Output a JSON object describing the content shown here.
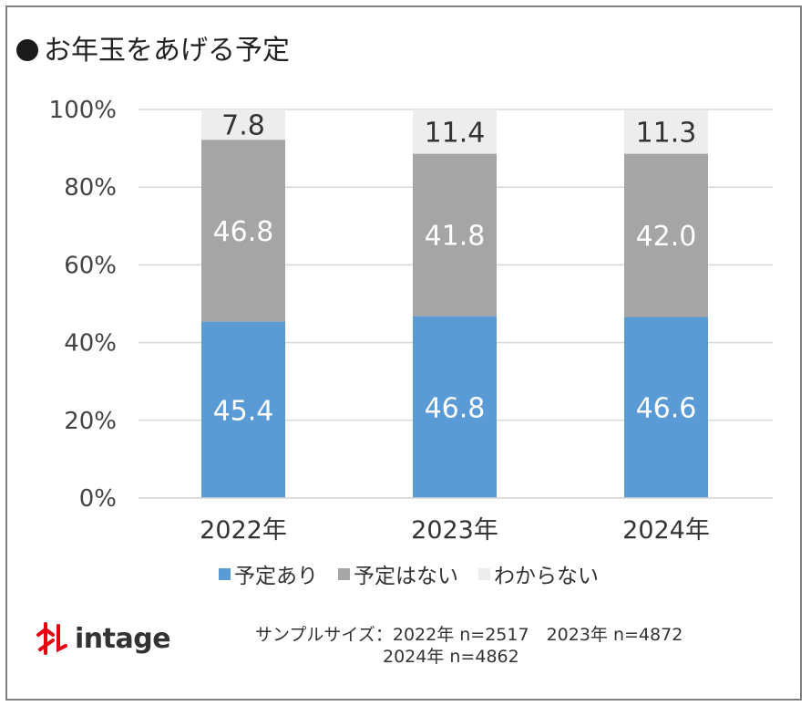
{
  "title": "お年玉をあげる予定",
  "chart_data": {
    "type": "bar",
    "stacked": true,
    "categories": [
      "2022年",
      "2023年",
      "2024年"
    ],
    "series": [
      {
        "name": "予定あり",
        "values": [
          45.4,
          46.8,
          46.6
        ],
        "color": "#5b9bd5",
        "label_color": "#ffffff"
      },
      {
        "name": "予定はない",
        "values": [
          46.8,
          41.8,
          42.0
        ],
        "color": "#a5a5a5",
        "label_color": "#ffffff"
      },
      {
        "name": "わからない",
        "values": [
          7.8,
          11.4,
          11.3
        ],
        "color": "#ededed",
        "label_color": "#333333"
      }
    ],
    "value_labels": [
      [
        "45.4",
        "46.8",
        "46.6"
      ],
      [
        "46.8",
        "41.8",
        "42.0"
      ],
      [
        "7.8",
        "11.4",
        "11.3"
      ]
    ],
    "yticks": [
      "0%",
      "20%",
      "40%",
      "60%",
      "80%",
      "100%"
    ],
    "ylim": [
      0,
      100
    ],
    "grid": true,
    "legend_position": "bottom"
  },
  "legend": {
    "items": [
      {
        "label": "予定あり",
        "color": "#5b9bd5"
      },
      {
        "label": "予定はない",
        "color": "#a5a5a5"
      },
      {
        "label": "わからない",
        "color": "#ededed"
      }
    ]
  },
  "logo": {
    "text": "intage",
    "icon": "intage-logo-icon",
    "color": "#e60012"
  },
  "sample_size": {
    "line1": "サンプルサイズ：2022年 n=2517　2023年 n=4872",
    "line2": "2024年 n=4862"
  }
}
